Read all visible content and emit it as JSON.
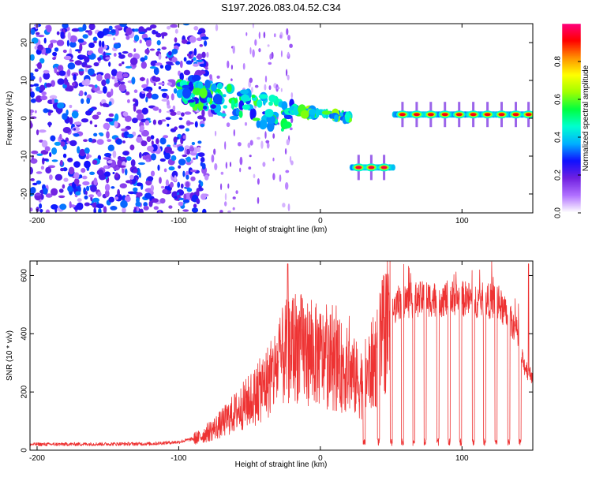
{
  "title": "S197.2026.083.04.52.C34",
  "chart_data": [
    {
      "type": "heatmap",
      "xlabel": "Height of straight line (km)",
      "ylabel": "Frequency (Hz)",
      "xlim": [
        -205,
        150
      ],
      "ylim": [
        -25,
        25
      ],
      "xticks": [
        -200,
        -100,
        0,
        100
      ],
      "yticks": [
        -20,
        -10,
        0,
        10,
        20
      ],
      "colorbar": {
        "label": "Normalized spectral amplitude",
        "range": [
          0,
          1
        ],
        "ticks": [
          "0.0",
          "0.2",
          "0.4",
          "0.6",
          "0.8"
        ],
        "colors": [
          "#ffffff",
          "#b070ff",
          "#7020e0",
          "#1010ff",
          "#00b0ff",
          "#00ffd0",
          "#00ff40",
          "#a0ff00",
          "#ffff00",
          "#ff9000",
          "#ff0000",
          "#ff0080"
        ]
      },
      "noise_region": {
        "x": [
          -205,
          -80
        ],
        "level": 0.3
      },
      "drift_segments": [
        {
          "x_start": -100,
          "x_end": -20,
          "freq_start": 8,
          "freq_end": 0
        },
        {
          "x_start": -20,
          "x_end": 22,
          "freq_start": 2,
          "freq_end": 0
        }
      ],
      "tone_segments": [
        {
          "x_start": 22,
          "x_end": 52,
          "freq": -13,
          "peaks": [
            27,
            36,
            45
          ],
          "peak_amplitude": 0.95
        },
        {
          "x_start": 52,
          "x_end": 150,
          "freq": 1,
          "peaks": [
            58,
            68,
            78,
            88,
            98,
            108,
            118,
            128,
            138,
            147
          ],
          "peak_amplitude": 0.92
        }
      ]
    },
    {
      "type": "line",
      "xlabel": "Height of straight line (km)",
      "ylabel": "SNR (10 * v/v)",
      "xlim": [
        -205,
        150
      ],
      "ylim": [
        0,
        650
      ],
      "xticks": [
        -200,
        -100,
        0,
        100
      ],
      "yticks": [
        0,
        200,
        400,
        600
      ],
      "color": "#ee3333",
      "profile": [
        {
          "x": -205,
          "y": 20
        },
        {
          "x": -120,
          "y": 22
        },
        {
          "x": -100,
          "y": 28
        },
        {
          "x": -85,
          "y": 45
        },
        {
          "x": -70,
          "y": 90
        },
        {
          "x": -55,
          "y": 150
        },
        {
          "x": -45,
          "y": 190
        },
        {
          "x": -35,
          "y": 250
        },
        {
          "x": -25,
          "y": 330
        },
        {
          "x": -18,
          "y": 360
        },
        {
          "x": -10,
          "y": 340
        },
        {
          "x": 0,
          "y": 320
        },
        {
          "x": 10,
          "y": 300
        },
        {
          "x": 20,
          "y": 270
        },
        {
          "x": 28,
          "y": 230
        },
        {
          "x": 32,
          "y": 250
        },
        {
          "x": 40,
          "y": 320
        },
        {
          "x": 46,
          "y": 420
        },
        {
          "x": 55,
          "y": 510
        },
        {
          "x": 75,
          "y": 520
        },
        {
          "x": 100,
          "y": 520
        },
        {
          "x": 125,
          "y": 510
        },
        {
          "x": 138,
          "y": 420
        },
        {
          "x": 143,
          "y": 300
        },
        {
          "x": 148,
          "y": 260
        }
      ],
      "dropouts": [
        31,
        41,
        50,
        58,
        66,
        74,
        83,
        91,
        99,
        108,
        116,
        124,
        133,
        141
      ],
      "spikes": [
        {
          "x": -23,
          "y": 640
        },
        {
          "x": 147,
          "y": 640
        }
      ]
    }
  ]
}
